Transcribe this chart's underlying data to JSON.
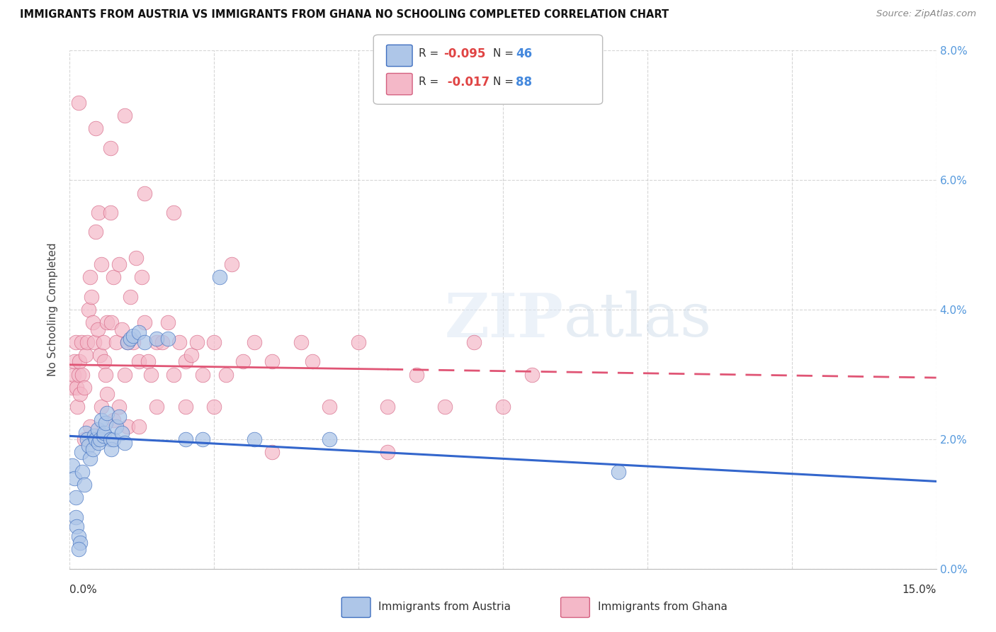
{
  "title": "IMMIGRANTS FROM AUSTRIA VS IMMIGRANTS FROM GHANA NO SCHOOLING COMPLETED CORRELATION CHART",
  "source": "Source: ZipAtlas.com",
  "ylabel": "No Schooling Completed",
  "xlim": [
    0.0,
    15.0
  ],
  "ylim": [
    0.0,
    8.0
  ],
  "color_austria": "#aec6e8",
  "color_ghana": "#f4b8c8",
  "line_color_austria": "#3366cc",
  "line_color_ghana": "#e05575",
  "watermark": "ZIPatlas",
  "austria_R": "-0.095",
  "austria_N": "46",
  "ghana_R": "-0.017",
  "ghana_N": "88",
  "austria_line_x0": 0.0,
  "austria_line_y0": 2.05,
  "austria_line_x1": 15.0,
  "austria_line_y1": 1.35,
  "ghana_line_x0": 0.0,
  "ghana_line_y0": 3.15,
  "ghana_line_x1": 15.0,
  "ghana_line_y1": 2.95,
  "austria_x": [
    0.05,
    0.08,
    0.1,
    0.1,
    0.12,
    0.15,
    0.18,
    0.2,
    0.22,
    0.25,
    0.28,
    0.3,
    0.32,
    0.35,
    0.4,
    0.42,
    0.45,
    0.48,
    0.5,
    0.52,
    0.55,
    0.58,
    0.6,
    0.62,
    0.65,
    0.7,
    0.72,
    0.75,
    0.8,
    0.85,
    0.9,
    0.95,
    1.0,
    1.05,
    1.1,
    1.2,
    1.3,
    1.5,
    1.7,
    2.0,
    2.3,
    2.6,
    3.2,
    4.5,
    9.5,
    0.15
  ],
  "austria_y": [
    1.6,
    1.4,
    1.1,
    0.8,
    0.65,
    0.5,
    0.4,
    1.8,
    1.5,
    1.3,
    2.1,
    2.0,
    1.9,
    1.7,
    1.85,
    2.05,
    2.0,
    2.15,
    1.95,
    2.0,
    2.3,
    2.05,
    2.1,
    2.25,
    2.4,
    2.0,
    1.85,
    2.0,
    2.2,
    2.35,
    2.1,
    1.95,
    3.5,
    3.55,
    3.6,
    3.65,
    3.5,
    3.55,
    3.55,
    2.0,
    2.0,
    4.5,
    2.0,
    2.0,
    1.5,
    0.3
  ],
  "ghana_x": [
    0.05,
    0.07,
    0.08,
    0.1,
    0.12,
    0.13,
    0.15,
    0.17,
    0.18,
    0.2,
    0.22,
    0.25,
    0.28,
    0.3,
    0.32,
    0.35,
    0.38,
    0.4,
    0.42,
    0.45,
    0.48,
    0.5,
    0.52,
    0.55,
    0.58,
    0.6,
    0.62,
    0.65,
    0.7,
    0.72,
    0.75,
    0.8,
    0.85,
    0.9,
    0.95,
    1.0,
    1.05,
    1.1,
    1.15,
    1.2,
    1.25,
    1.3,
    1.35,
    1.4,
    1.5,
    1.6,
    1.7,
    1.8,
    1.9,
    2.0,
    2.1,
    2.2,
    2.3,
    2.5,
    2.7,
    3.0,
    3.2,
    3.5,
    4.0,
    4.5,
    5.0,
    5.5,
    6.0,
    6.5,
    7.0,
    7.5,
    8.0,
    0.25,
    0.35,
    0.55,
    0.65,
    0.75,
    0.85,
    1.0,
    1.2,
    1.5,
    2.0,
    2.5,
    3.5,
    5.5,
    0.15,
    0.45,
    0.7,
    0.95,
    1.3,
    1.8,
    2.8,
    4.2
  ],
  "ghana_y": [
    2.8,
    3.0,
    3.2,
    3.5,
    2.8,
    2.5,
    3.0,
    3.2,
    2.7,
    3.5,
    3.0,
    2.8,
    3.3,
    3.5,
    4.0,
    4.5,
    4.2,
    3.8,
    3.5,
    5.2,
    3.7,
    5.5,
    3.3,
    4.7,
    3.5,
    3.2,
    3.0,
    3.8,
    5.5,
    3.8,
    4.5,
    3.5,
    4.7,
    3.7,
    3.0,
    3.5,
    4.2,
    3.5,
    4.8,
    3.2,
    4.5,
    3.8,
    3.2,
    3.0,
    3.5,
    3.5,
    3.8,
    3.0,
    3.5,
    3.2,
    3.3,
    3.5,
    3.0,
    3.5,
    3.0,
    3.2,
    3.5,
    3.2,
    3.5,
    2.5,
    3.5,
    2.5,
    3.0,
    2.5,
    3.5,
    2.5,
    3.0,
    2.0,
    2.2,
    2.5,
    2.7,
    2.3,
    2.5,
    2.2,
    2.2,
    2.5,
    2.5,
    2.5,
    1.8,
    1.8,
    7.2,
    6.8,
    6.5,
    7.0,
    5.8,
    5.5,
    4.7,
    3.2
  ]
}
